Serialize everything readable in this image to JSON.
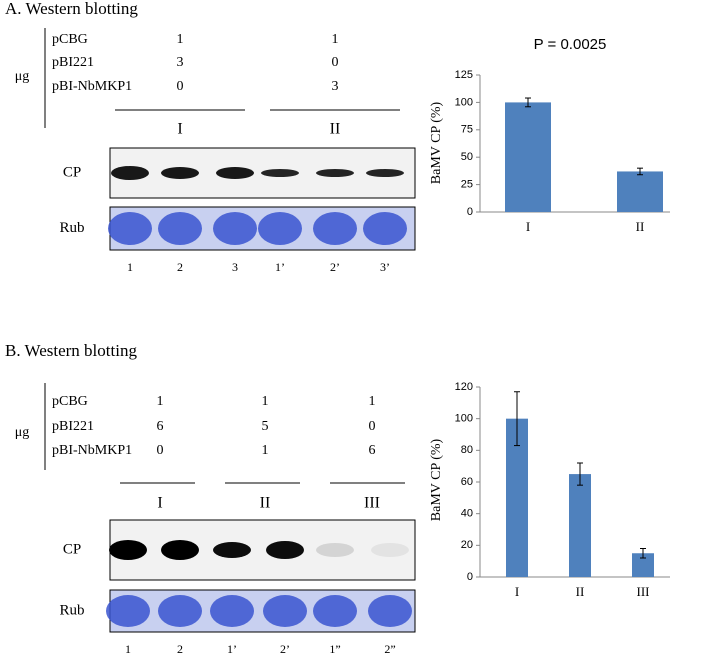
{
  "panels": [
    {
      "title": "A. Western blotting",
      "unit": "μg",
      "rows": [
        {
          "label": "pCBG",
          "amounts": [
            1,
            1
          ]
        },
        {
          "label": "pBI221",
          "amounts": [
            3,
            0
          ]
        },
        {
          "label": "pBI-NbMKP1",
          "amounts": [
            0,
            3
          ]
        }
      ],
      "groups": [
        "I",
        "II"
      ],
      "blots": [
        "CP",
        "Rub"
      ],
      "lanes": [
        "1",
        "2",
        "3",
        "1’",
        "2’",
        "3’"
      ]
    },
    {
      "title": "B. Western blotting",
      "unit": "μg",
      "rows": [
        {
          "label": "pCBG",
          "amounts": [
            1,
            1,
            1
          ]
        },
        {
          "label": "pBI221",
          "amounts": [
            6,
            5,
            0
          ]
        },
        {
          "label": "pBI-NbMKP1",
          "amounts": [
            0,
            1,
            6
          ]
        }
      ],
      "groups": [
        "I",
        "II",
        "III"
      ],
      "blots": [
        "CP",
        "Rub"
      ],
      "lanes": [
        "1",
        "2",
        "1’",
        "2’",
        "1”",
        "2”"
      ]
    }
  ],
  "chart_data": [
    {
      "type": "bar",
      "annotation": "P = 0.0025",
      "y_label": "BaMV CP (%)",
      "categories": [
        "I",
        "II"
      ],
      "values": [
        100,
        37
      ],
      "errors": [
        4,
        3
      ],
      "color": "#4f81bd",
      "ylim": [
        0,
        125
      ],
      "yticks": [
        0,
        25,
        50,
        75,
        100,
        125
      ]
    },
    {
      "type": "bar",
      "y_label": "BaMV CP (%)",
      "categories": [
        "I",
        "II",
        "III"
      ],
      "values": [
        100,
        65,
        15
      ],
      "errors": [
        17,
        7,
        3
      ],
      "color": "#4f81bd",
      "ylim": [
        0,
        120
      ],
      "yticks": [
        0,
        20,
        40,
        60,
        80,
        100,
        120
      ]
    }
  ]
}
